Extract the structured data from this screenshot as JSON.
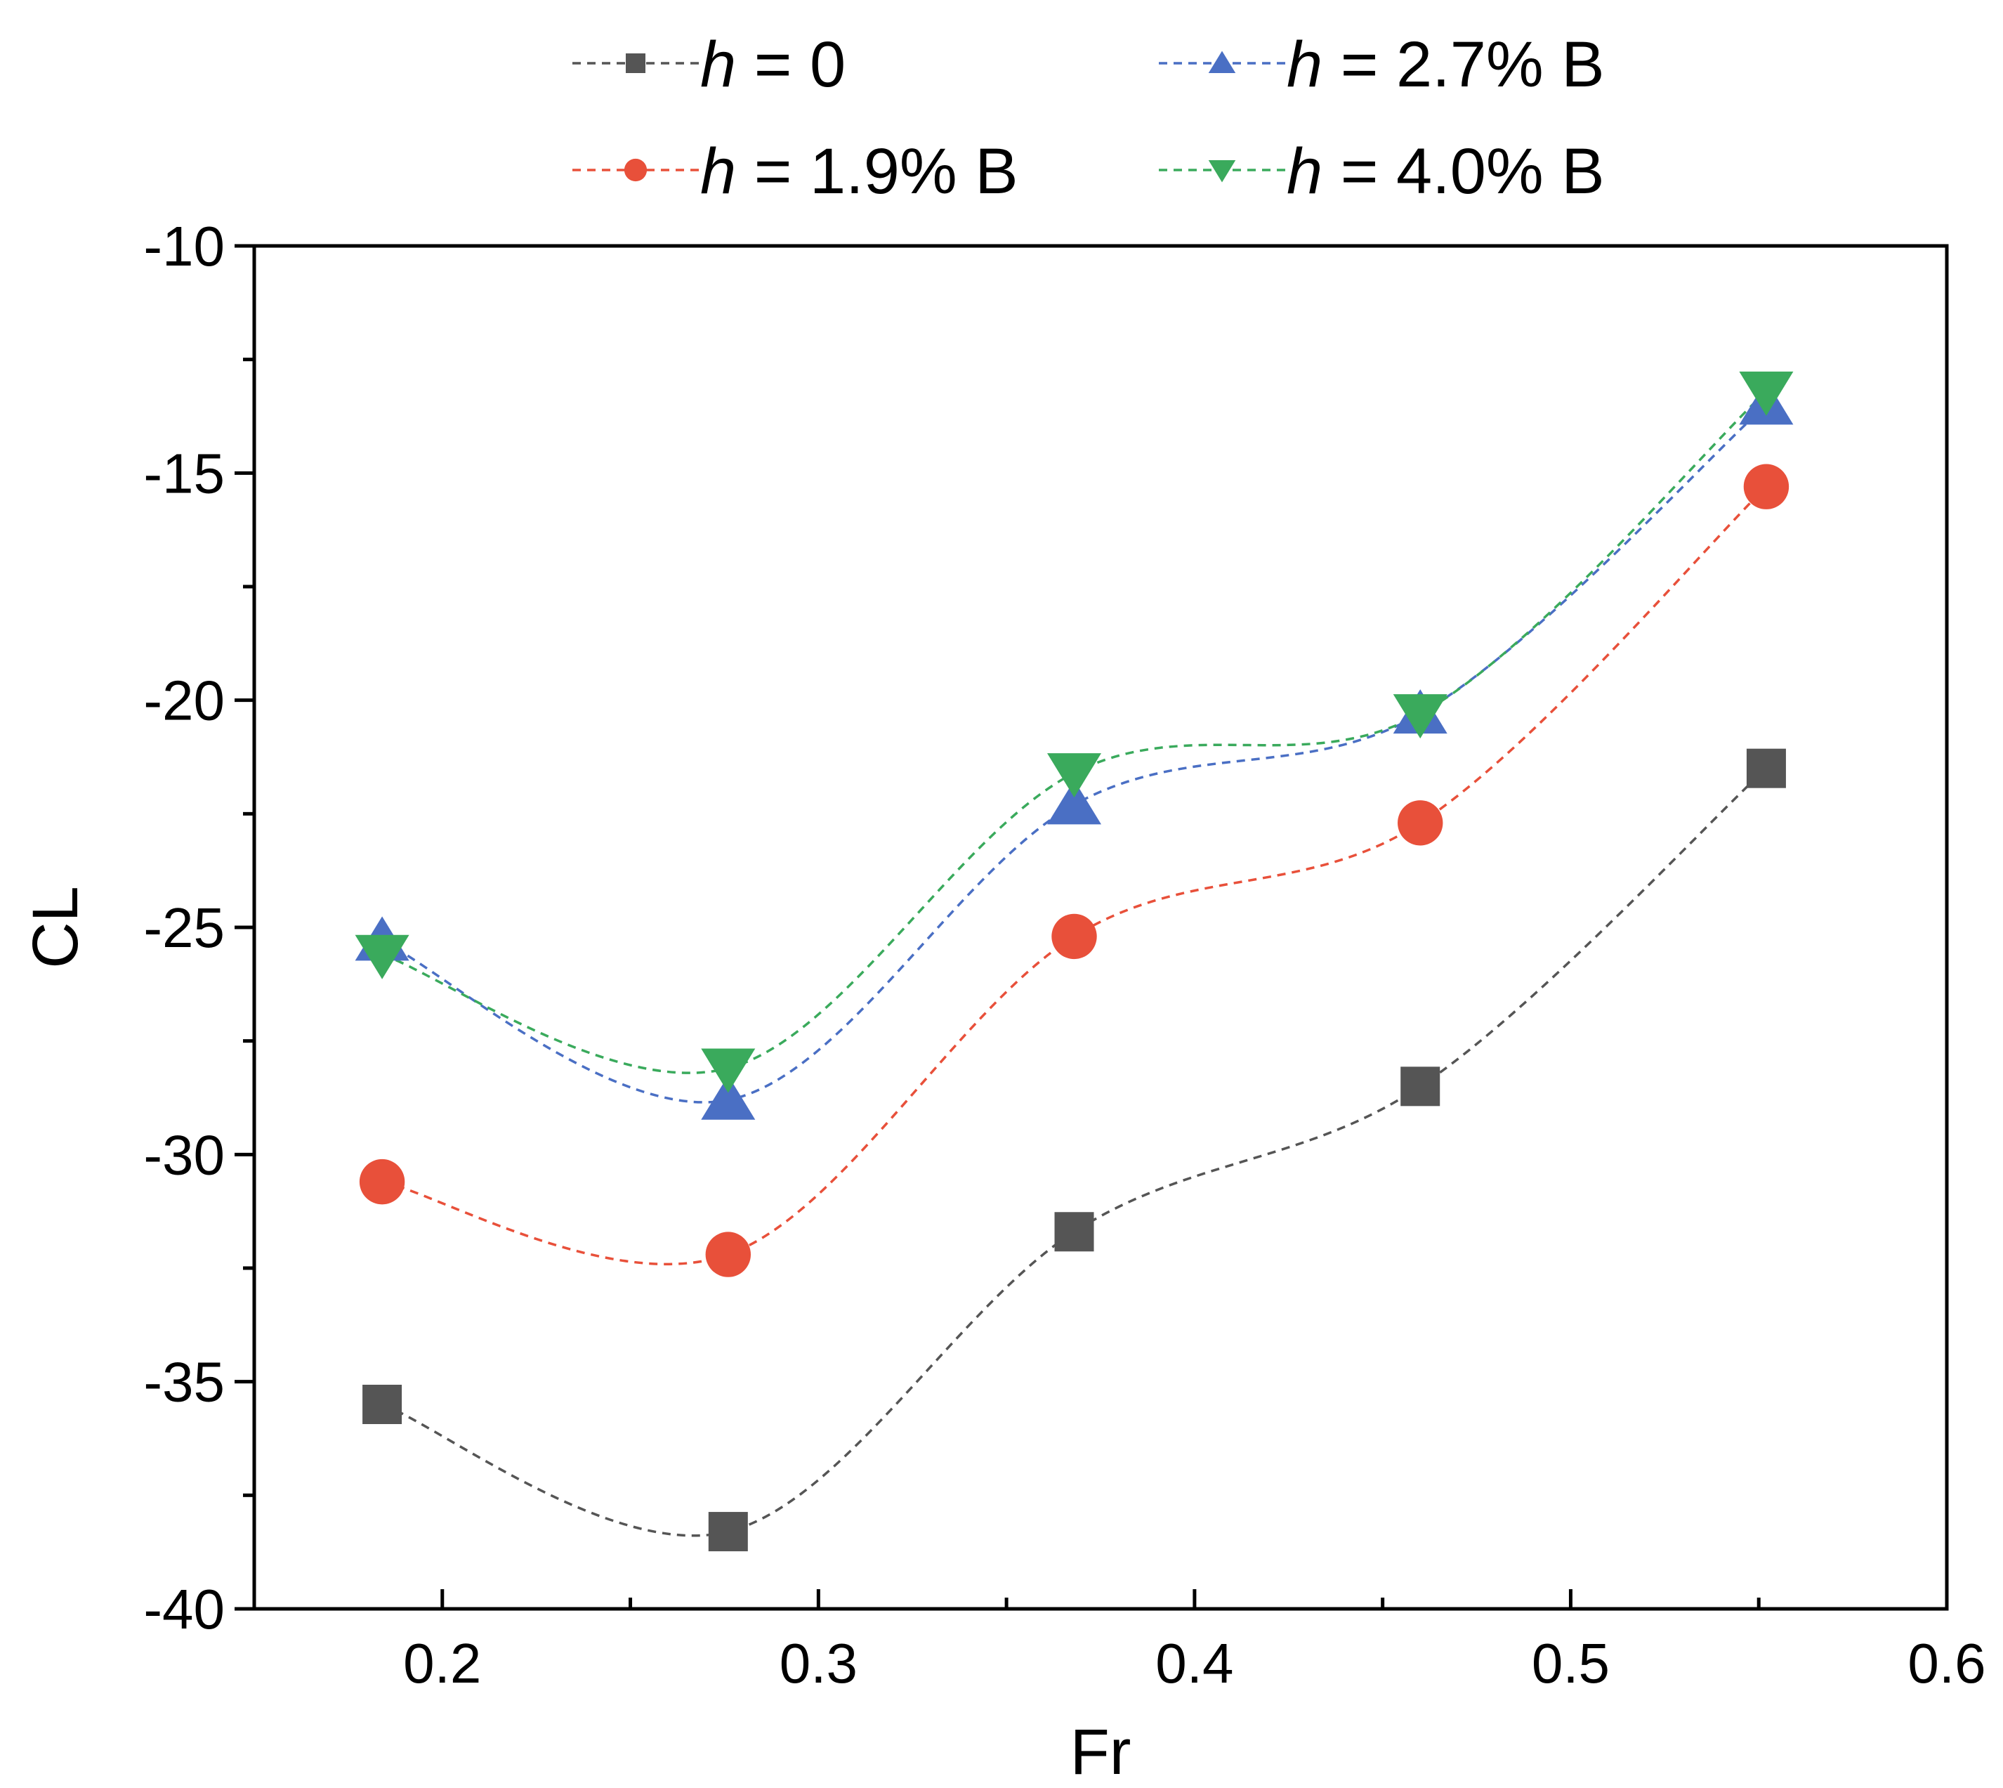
{
  "chart_data": {
    "type": "line",
    "title": "",
    "xlabel": "Fr",
    "ylabel": "CL",
    "xlim": [
      0.15,
      0.6
    ],
    "ylim": [
      -40,
      -10
    ],
    "xticks": [
      0.2,
      0.3,
      0.4,
      0.5,
      0.6
    ],
    "xtick_labels": [
      "0.2",
      "0.3",
      "0.4",
      "0.5",
      "0.6"
    ],
    "yticks": [
      -10,
      -15,
      -20,
      -25,
      -30,
      -35,
      -40
    ],
    "ytick_labels": [
      "-10",
      "-15",
      "-20",
      "-25",
      "-30",
      "-35",
      "-40"
    ],
    "grid": false,
    "legend_position": "top",
    "x": [
      0.184,
      0.276,
      0.368,
      0.46,
      0.552
    ],
    "series": [
      {
        "name": "h = 0",
        "label_var": "h",
        "label_rest": " = 0",
        "color": "#555555",
        "marker": "square",
        "values": [
          -35.5,
          -38.3,
          -31.7,
          -28.5,
          -21.5
        ]
      },
      {
        "name": "h = 1.9% B",
        "label_var": "h",
        "label_rest": " = 1.9% B",
        "color": "#e8503a",
        "marker": "circle",
        "values": [
          -30.6,
          -32.2,
          -25.2,
          -22.7,
          -15.3
        ]
      },
      {
        "name": "h = 2.7% B",
        "label_var": "h",
        "label_rest": " = 2.7% B",
        "color": "#4a6fc4",
        "marker": "triangle-up",
        "values": [
          -25.3,
          -28.8,
          -22.3,
          -20.3,
          -13.5
        ]
      },
      {
        "name": "h = 4.0% B",
        "label_var": "h",
        "label_rest": " = 4.0% B",
        "color": "#3aaa5c",
        "marker": "triangle-down",
        "values": [
          -25.6,
          -28.1,
          -21.6,
          -20.3,
          -13.2
        ]
      }
    ]
  }
}
